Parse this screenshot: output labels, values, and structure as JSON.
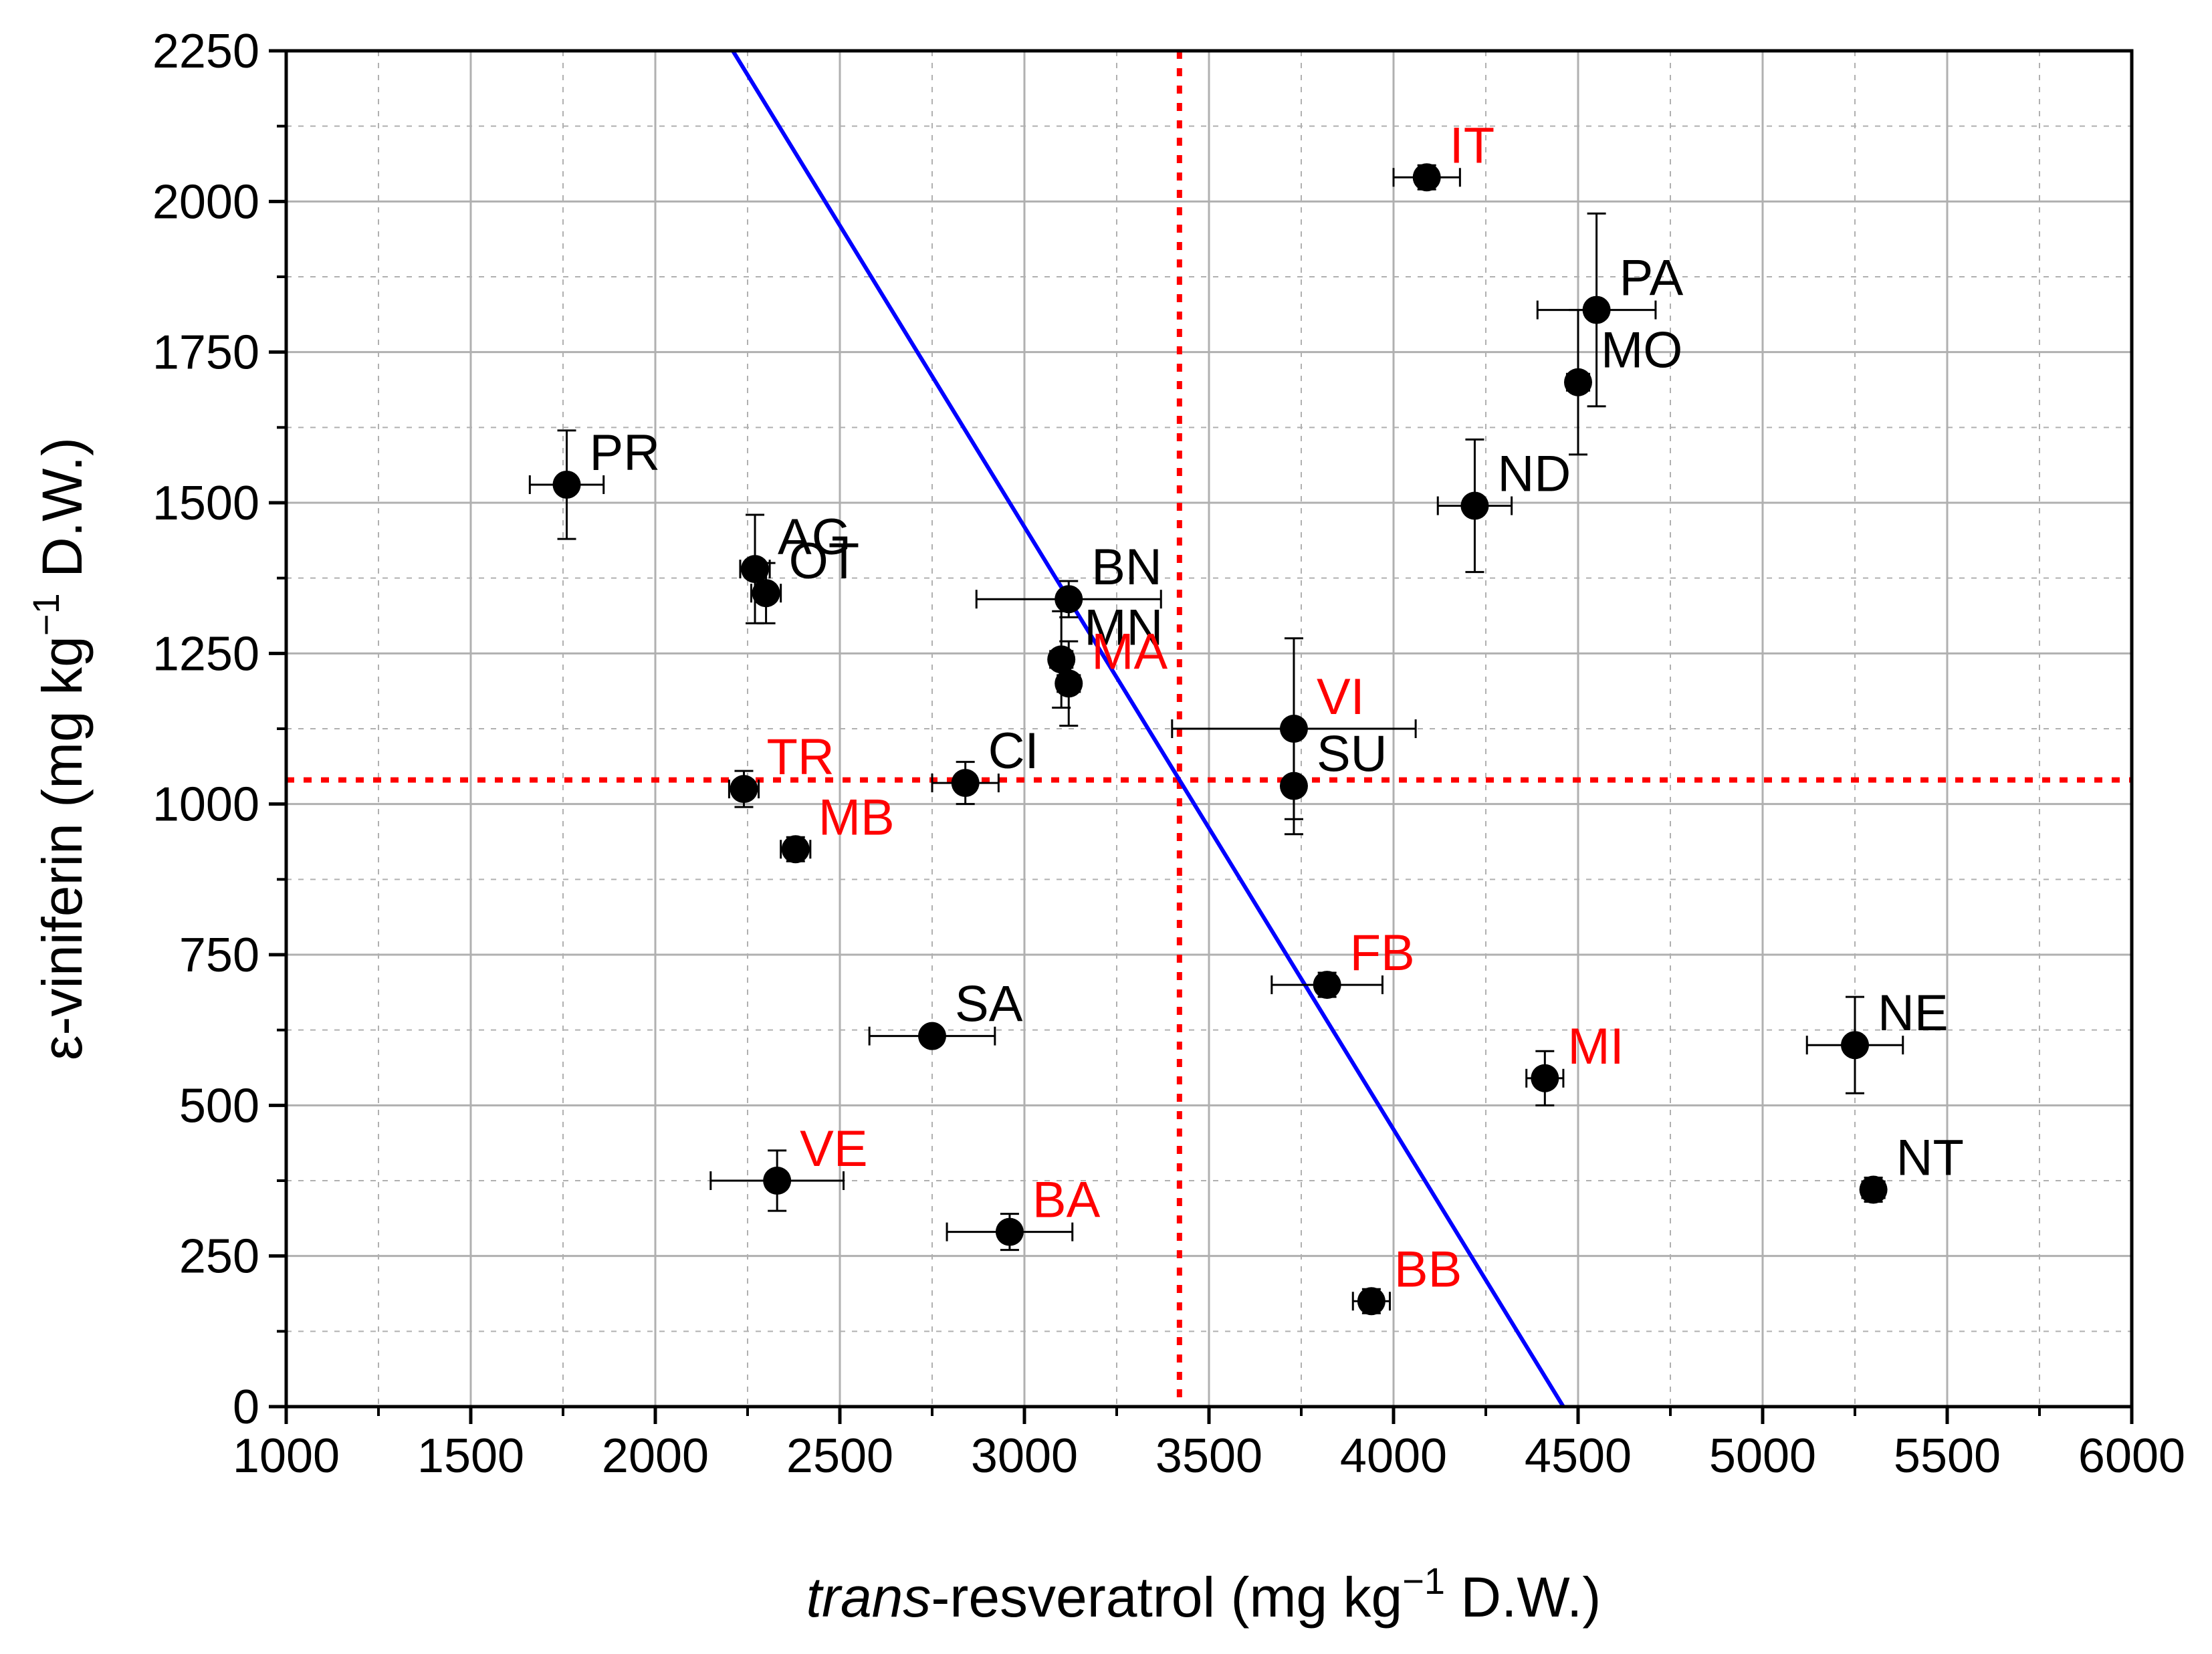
{
  "chart_data": {
    "type": "scatter",
    "title": "",
    "xlabel_italic": "trans",
    "xlabel_rest": "-resveratrol (mg kg",
    "xlabel_sup": "−1",
    "xlabel_tail": " D.W.)",
    "ylabel_main": "ε-viniferin (mg kg",
    "ylabel_sup": "−1",
    "ylabel_tail": " D.W.)",
    "xlim": [
      1000,
      6000
    ],
    "ylim": [
      0,
      2250
    ],
    "xticks": [
      1000,
      1500,
      2000,
      2500,
      3000,
      3500,
      4000,
      4500,
      5000,
      5500,
      6000
    ],
    "yticks": [
      0,
      250,
      500,
      750,
      1000,
      1250,
      1500,
      1750,
      2000,
      2250
    ],
    "grid": true,
    "colors": {
      "marker": "#000000",
      "label_black": "#000000",
      "label_red": "#ff0000",
      "regression_line": "#0000ff",
      "mean_lines": "#ff0000",
      "grid": "#b0b0b0"
    },
    "mean_lines": {
      "x": 3420,
      "y": 1040
    },
    "regression_line": {
      "points": [
        [
          2210,
          2250
        ],
        [
          4460,
          0
        ]
      ]
    },
    "points": [
      {
        "label": "PR",
        "x": 1760,
        "y": 1530,
        "xerr": 100,
        "yerr": 90,
        "label_color": "black"
      },
      {
        "label": "AG",
        "x": 2270,
        "y": 1390,
        "xerr": 40,
        "yerr": 90,
        "label_color": "black"
      },
      {
        "label": "OT",
        "x": 2300,
        "y": 1350,
        "xerr": 40,
        "yerr": 50,
        "label_color": "black"
      },
      {
        "label": "TR",
        "x": 2240,
        "y": 1025,
        "xerr": 40,
        "yerr": 30,
        "label_color": "red"
      },
      {
        "label": "MB",
        "x": 2380,
        "y": 925,
        "xerr": 40,
        "yerr": 20,
        "label_color": "red"
      },
      {
        "label": "CI",
        "x": 2840,
        "y": 1035,
        "xerr": 90,
        "yerr": 35,
        "label_color": "black"
      },
      {
        "label": "SA",
        "x": 2750,
        "y": 615,
        "xerr": 170,
        "yerr": 15,
        "label_color": "black"
      },
      {
        "label": "VE",
        "x": 2330,
        "y": 375,
        "xerr": 180,
        "yerr": 50,
        "label_color": "red"
      },
      {
        "label": "BA",
        "x": 2960,
        "y": 290,
        "xerr": 170,
        "yerr": 30,
        "label_color": "red"
      },
      {
        "label": "BN",
        "x": 3120,
        "y": 1340,
        "xerr": 250,
        "yerr": 30,
        "label_color": "black"
      },
      {
        "label": "MN",
        "x": 3100,
        "y": 1240,
        "xerr": 30,
        "yerr": 80,
        "label_color": "black"
      },
      {
        "label": "MA",
        "x": 3120,
        "y": 1200,
        "xerr": 30,
        "yerr": 70,
        "label_color": "red"
      },
      {
        "label": "VI",
        "x": 3730,
        "y": 1125,
        "xerr": 330,
        "yerr": 150,
        "label_color": "red"
      },
      {
        "label": "SU",
        "x": 3730,
        "y": 1030,
        "xerr": 20,
        "yerr": 80,
        "label_color": "black"
      },
      {
        "label": "FB",
        "x": 3820,
        "y": 700,
        "xerr": 150,
        "yerr": 20,
        "label_color": "red"
      },
      {
        "label": "BB",
        "x": 3940,
        "y": 175,
        "xerr": 50,
        "yerr": 20,
        "label_color": "red"
      },
      {
        "label": "IT",
        "x": 4090,
        "y": 2040,
        "xerr": 90,
        "yerr": 20,
        "label_color": "red"
      },
      {
        "label": "PA",
        "x": 4550,
        "y": 1820,
        "xerr": 160,
        "yerr": 160,
        "label_color": "black"
      },
      {
        "label": "MO",
        "x": 4500,
        "y": 1700,
        "xerr": 30,
        "yerr": 120,
        "label_color": "black"
      },
      {
        "label": "ND",
        "x": 4220,
        "y": 1495,
        "xerr": 100,
        "yerr": 110,
        "label_color": "black"
      },
      {
        "label": "MI",
        "x": 4410,
        "y": 545,
        "xerr": 50,
        "yerr": 45,
        "label_color": "red"
      },
      {
        "label": "NE",
        "x": 5250,
        "y": 600,
        "xerr": 130,
        "yerr": 80,
        "label_color": "black"
      },
      {
        "label": "NT",
        "x": 5300,
        "y": 360,
        "xerr": 30,
        "yerr": 20,
        "label_color": "black"
      }
    ]
  }
}
